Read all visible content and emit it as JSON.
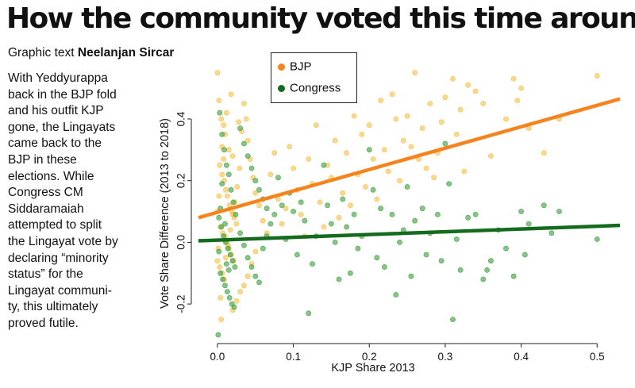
{
  "title": "How the community voted this time around",
  "credit": {
    "prefix": "Graphic text",
    "author": "Neelanjan Sircar"
  },
  "body_lines": [
    "With Yeddyurappa",
    "back in the BJP fold",
    "and his outfit KJP",
    "gone, the Lingayats",
    "came back to the",
    "BJP in these",
    "elections. While",
    "Congress CM",
    "Siddaramaiah",
    "attempted to split",
    "the Lingayat vote by",
    "declaring “minority",
    "status” for the",
    "Lingayat communi-",
    "ty, this ultimately",
    "proved futile."
  ],
  "colors": {
    "bjp": "#f5841f",
    "bjp_points": "#f5c04a",
    "congress": "#146b1e",
    "congress_points": "#3fa03f"
  },
  "chart_data": {
    "type": "scatter",
    "xlabel": "KJP Share 2013",
    "ylabel": "Vote Share Difference (2013 to 2018)",
    "xlim": [
      -0.025,
      0.53
    ],
    "ylim": [
      -0.3,
      0.58
    ],
    "xticks": [
      "0.0",
      "0.1",
      "0.2",
      "0.3",
      "0.4",
      "0.5"
    ],
    "xtick_values": [
      0.0,
      0.1,
      0.2,
      0.3,
      0.4,
      0.5
    ],
    "yticks": [
      "-0.2",
      "0.0",
      "0.2",
      "0.4"
    ],
    "ytick_values": [
      -0.2,
      0.0,
      0.2,
      0.4
    ],
    "legend": {
      "position": "top-center",
      "entries": [
        "BJP",
        "Congress"
      ]
    },
    "series": [
      {
        "name": "BJP",
        "point_color": "#f5c04a",
        "fit_color": "#f5841f",
        "fit_line": {
          "x": [
            -0.025,
            0.53
          ],
          "y": [
            0.08,
            0.465
          ]
        },
        "points": [
          [
            0.0,
            0.55
          ],
          [
            0.002,
            0.46
          ],
          [
            0.005,
            0.4
          ],
          [
            0.008,
            0.38
          ],
          [
            0.01,
            0.35
          ],
          [
            0.012,
            0.42
          ],
          [
            0.015,
            0.3
          ],
          [
            0.02,
            0.28
          ],
          [
            0.003,
            0.25
          ],
          [
            0.006,
            0.22
          ],
          [
            0.009,
            0.2
          ],
          [
            0.011,
            0.17
          ],
          [
            0.013,
            0.15
          ],
          [
            0.016,
            0.12
          ],
          [
            0.019,
            0.1
          ],
          [
            0.022,
            0.08
          ],
          [
            0.025,
            0.06
          ],
          [
            0.004,
            0.05
          ],
          [
            0.007,
            0.03
          ],
          [
            0.01,
            0.02
          ],
          [
            0.012,
            0.0
          ],
          [
            0.015,
            -0.02
          ],
          [
            0.018,
            -0.04
          ],
          [
            0.021,
            -0.06
          ],
          [
            0.003,
            -0.08
          ],
          [
            0.006,
            -0.1
          ],
          [
            0.009,
            -0.12
          ],
          [
            0.011,
            -0.05
          ],
          [
            0.014,
            -0.01
          ],
          [
            0.017,
            0.04
          ],
          [
            0.02,
            0.09
          ],
          [
            0.023,
            0.13
          ],
          [
            0.026,
            0.18
          ],
          [
            0.029,
            0.24
          ],
          [
            0.032,
            0.36
          ],
          [
            0.035,
            0.45
          ],
          [
            0.038,
            0.4
          ],
          [
            0.04,
            0.33
          ],
          [
            0.043,
            0.27
          ],
          [
            0.047,
            0.21
          ],
          [
            0.05,
            0.16
          ],
          [
            0.055,
            0.12
          ],
          [
            0.06,
            0.07
          ],
          [
            0.065,
            0.03
          ],
          [
            0.05,
            -0.03
          ],
          [
            0.045,
            -0.07
          ],
          [
            0.04,
            -0.11
          ],
          [
            0.035,
            -0.14
          ],
          [
            0.03,
            -0.16
          ],
          [
            0.025,
            -0.19
          ],
          [
            0.02,
            -0.22
          ],
          [
            0.005,
            -0.25
          ],
          [
            0.018,
            0.48
          ],
          [
            0.028,
            0.39
          ],
          [
            0.07,
            0.22
          ],
          [
            0.075,
            0.29
          ],
          [
            0.08,
            0.14
          ],
          [
            0.085,
            0.06
          ],
          [
            0.09,
            0.11
          ],
          [
            0.095,
            0.31
          ],
          [
            0.1,
            0.24
          ],
          [
            0.105,
            0.17
          ],
          [
            0.11,
            0.09
          ],
          [
            0.115,
            0.02
          ],
          [
            0.12,
            0.27
          ],
          [
            0.125,
            0.19
          ],
          [
            0.13,
            0.38
          ],
          [
            0.135,
            0.13
          ],
          [
            0.14,
            0.05
          ],
          [
            0.145,
            0.25
          ],
          [
            0.15,
            0.21
          ],
          [
            0.155,
            0.33
          ],
          [
            0.16,
            0.08
          ],
          [
            0.165,
            0.16
          ],
          [
            0.17,
            0.29
          ],
          [
            0.175,
            0.12
          ],
          [
            0.18,
            0.41
          ],
          [
            0.185,
            0.22
          ],
          [
            0.19,
            0.35
          ],
          [
            0.195,
            0.18
          ],
          [
            0.2,
            0.38
          ],
          [
            0.205,
            0.27
          ],
          [
            0.21,
            0.14
          ],
          [
            0.215,
            0.46
          ],
          [
            0.22,
            0.3
          ],
          [
            0.225,
            0.23
          ],
          [
            0.23,
            0.48
          ],
          [
            0.235,
            0.4
          ],
          [
            0.24,
            0.2
          ],
          [
            0.245,
            0.33
          ],
          [
            0.25,
            0.41
          ],
          [
            0.255,
            0.31
          ],
          [
            0.26,
            0.55
          ],
          [
            0.265,
            0.27
          ],
          [
            0.27,
            0.37
          ],
          [
            0.275,
            0.24
          ],
          [
            0.28,
            0.45
          ],
          [
            0.285,
            0.21
          ],
          [
            0.29,
            0.29
          ],
          [
            0.295,
            0.39
          ],
          [
            0.3,
            0.47
          ],
          [
            0.31,
            0.53
          ],
          [
            0.315,
            0.35
          ],
          [
            0.32,
            0.43
          ],
          [
            0.325,
            0.23
          ],
          [
            0.33,
            0.51
          ],
          [
            0.34,
            0.49
          ],
          [
            0.35,
            0.45
          ],
          [
            0.36,
            0.28
          ],
          [
            0.38,
            0.4
          ],
          [
            0.39,
            0.53
          ],
          [
            0.395,
            0.46
          ],
          [
            0.4,
            0.5
          ],
          [
            0.41,
            0.37
          ],
          [
            0.43,
            0.29
          ],
          [
            0.45,
            0.4
          ],
          [
            0.5,
            0.54
          ],
          [
            0.0,
            0.1
          ],
          [
            0.002,
            0.15
          ],
          [
            0.004,
            -0.18
          ],
          [
            0.006,
            0.31
          ],
          [
            0.008,
            0.27
          ],
          [
            0.001,
            -0.02
          ],
          [
            0.0,
            -0.06
          ]
        ]
      },
      {
        "name": "Congress",
        "point_color": "#3fa03f",
        "fit_color": "#146b1e",
        "fit_line": {
          "x": [
            -0.025,
            0.53
          ],
          "y": [
            0.005,
            0.055
          ]
        },
        "points": [
          [
            0.003,
            0.42
          ],
          [
            0.006,
            0.35
          ],
          [
            0.009,
            0.3
          ],
          [
            0.012,
            0.25
          ],
          [
            0.015,
            0.22
          ],
          [
            0.018,
            0.17
          ],
          [
            0.021,
            0.13
          ],
          [
            0.024,
            0.09
          ],
          [
            0.002,
            0.08
          ],
          [
            0.005,
            0.05
          ],
          [
            0.008,
            0.02
          ],
          [
            0.011,
            0.0
          ],
          [
            0.014,
            -0.02
          ],
          [
            0.017,
            -0.04
          ],
          [
            0.02,
            -0.06
          ],
          [
            0.023,
            -0.08
          ],
          [
            0.004,
            -0.1
          ],
          [
            0.007,
            -0.12
          ],
          [
            0.01,
            -0.14
          ],
          [
            0.013,
            -0.16
          ],
          [
            0.016,
            -0.18
          ],
          [
            0.019,
            -0.2
          ],
          [
            0.022,
            -0.21
          ],
          [
            0.001,
            -0.3
          ],
          [
            0.002,
            -0.03
          ],
          [
            0.004,
            0.11
          ],
          [
            0.006,
            0.19
          ],
          [
            0.01,
            0.06
          ],
          [
            0.012,
            -0.07
          ],
          [
            0.015,
            -0.09
          ],
          [
            0.03,
            0.37
          ],
          [
            0.035,
            0.32
          ],
          [
            0.04,
            0.28
          ],
          [
            0.045,
            0.24
          ],
          [
            0.05,
            0.2
          ],
          [
            0.055,
            0.17
          ],
          [
            0.06,
            0.14
          ],
          [
            0.065,
            0.11
          ],
          [
            0.03,
            0.03
          ],
          [
            0.035,
            -0.01
          ],
          [
            0.04,
            -0.05
          ],
          [
            0.045,
            -0.08
          ],
          [
            0.05,
            -0.11
          ],
          [
            0.055,
            -0.13
          ],
          [
            0.06,
            -0.02
          ],
          [
            0.065,
            0.02
          ],
          [
            0.07,
            0.06
          ],
          [
            0.075,
            0.09
          ],
          [
            0.08,
            0.21
          ],
          [
            0.085,
            0.12
          ],
          [
            0.09,
            0.01
          ],
          [
            0.095,
            0.16
          ],
          [
            0.1,
            0.1
          ],
          [
            0.105,
            -0.04
          ],
          [
            0.11,
            0.13
          ],
          [
            0.115,
            0.07
          ],
          [
            0.12,
            -0.23
          ],
          [
            0.125,
            -0.07
          ],
          [
            0.13,
            0.02
          ],
          [
            0.14,
            0.25
          ],
          [
            0.145,
            0.12
          ],
          [
            0.15,
            0.06
          ],
          [
            0.155,
            0.0
          ],
          [
            0.16,
            -0.12
          ],
          [
            0.165,
            0.14
          ],
          [
            0.17,
            0.05
          ],
          [
            0.175,
            -0.1
          ],
          [
            0.18,
            0.09
          ],
          [
            0.185,
            -0.02
          ],
          [
            0.19,
            0.02
          ],
          [
            0.2,
            0.3
          ],
          [
            0.205,
            0.17
          ],
          [
            0.21,
            -0.05
          ],
          [
            0.215,
            0.11
          ],
          [
            0.22,
            -0.08
          ],
          [
            0.23,
            0.09
          ],
          [
            0.235,
            -0.17
          ],
          [
            0.24,
            0.0
          ],
          [
            0.245,
            0.04
          ],
          [
            0.25,
            0.18
          ],
          [
            0.255,
            -0.11
          ],
          [
            0.26,
            0.07
          ],
          [
            0.27,
            0.11
          ],
          [
            0.275,
            -0.04
          ],
          [
            0.28,
            0.03
          ],
          [
            0.29,
            0.09
          ],
          [
            0.295,
            -0.06
          ],
          [
            0.3,
            0.32
          ],
          [
            0.305,
            0.19
          ],
          [
            0.31,
            -0.25
          ],
          [
            0.315,
            0.01
          ],
          [
            0.32,
            -0.09
          ],
          [
            0.33,
            0.08
          ],
          [
            0.34,
            0.09
          ],
          [
            0.35,
            -0.12
          ],
          [
            0.355,
            -0.09
          ],
          [
            0.36,
            -0.06
          ],
          [
            0.37,
            0.04
          ],
          [
            0.38,
            -0.02
          ],
          [
            0.39,
            -0.11
          ],
          [
            0.4,
            0.1
          ],
          [
            0.405,
            -0.04
          ],
          [
            0.41,
            0.06
          ],
          [
            0.43,
            0.12
          ],
          [
            0.44,
            0.03
          ],
          [
            0.45,
            0.1
          ],
          [
            0.5,
            0.01
          ]
        ]
      }
    ]
  }
}
